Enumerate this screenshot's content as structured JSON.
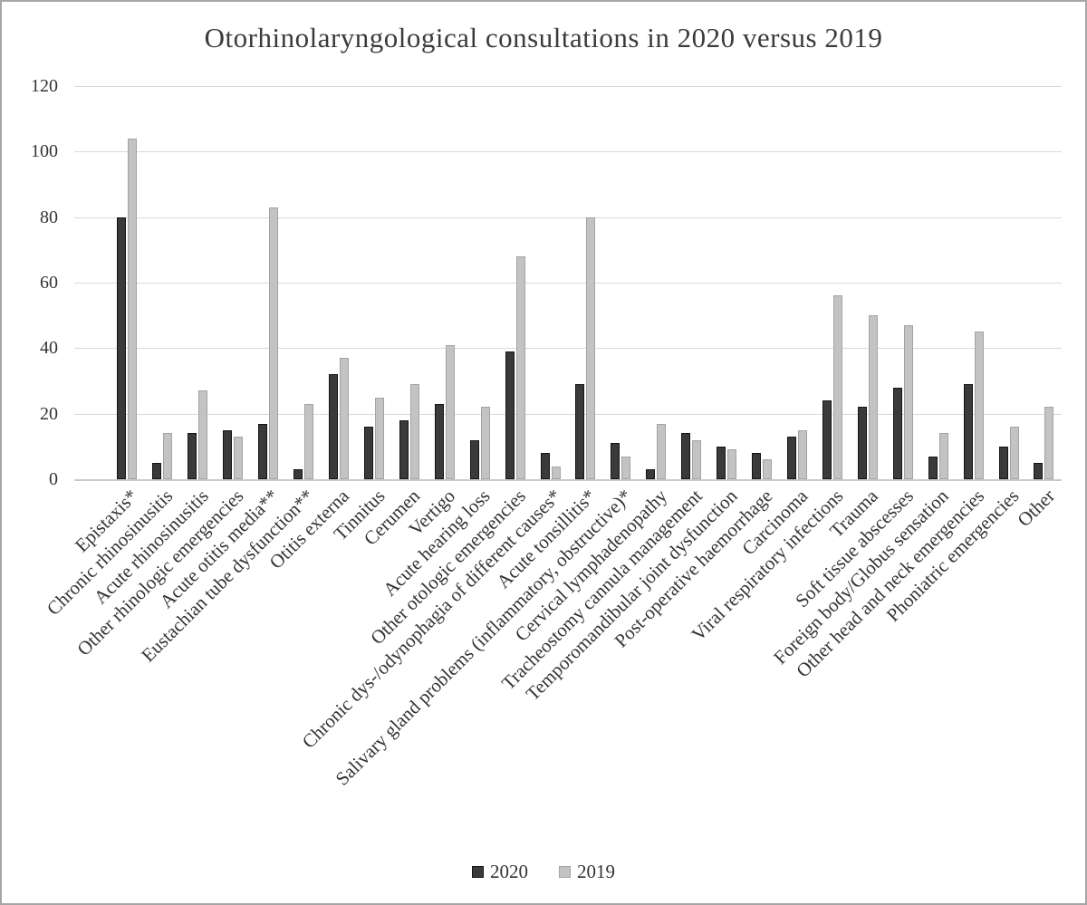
{
  "chart_data": {
    "type": "bar",
    "title": "Otorhinolaryngological consultations in 2020 versus 2019",
    "categories": [
      "Epistaxis*",
      "Chronic rhinosinusitis",
      "Acute rhinosinusitis",
      "Other rhinologic emergencies",
      "Acute otitis media**",
      "Eustachian tube dysfunction**",
      "Otitis externa",
      "Tinnitus",
      "Cerumen",
      "Vertigo",
      "Acute hearing loss",
      "Other otologic emergencies",
      "Chronic dys-/odynophagia of different causes*",
      "Acute tonsillitis*",
      "Salivary gland problems (inflammatory, obstructive)*",
      "Cervical lymphadenopathy",
      "Tracheostomy cannula management",
      "Temporomandibular joint dysfunction",
      "Post-operative haemorrhage",
      "Carcinoma",
      "Viral respiratory infections",
      "Trauma",
      "Soft tissue abscesses",
      "Foreign body/Globus sensation",
      "Other head and neck emergencies",
      "Phoniatric emergencies",
      "Other"
    ],
    "series": [
      {
        "name": "2020",
        "fill": "#3a3a3a",
        "border": "#141414",
        "values": [
          80,
          5,
          14,
          15,
          17,
          3,
          32,
          16,
          18,
          23,
          12,
          39,
          8,
          29,
          11,
          3,
          14,
          10,
          8,
          13,
          24,
          22,
          28,
          7,
          29,
          10,
          5
        ]
      },
      {
        "name": "2019",
        "fill": "#c3c3c3",
        "border": "#a3a3a3",
        "values": [
          104,
          14,
          27,
          13,
          83,
          23,
          37,
          25,
          29,
          41,
          22,
          68,
          4,
          80,
          7,
          17,
          12,
          9,
          6,
          15,
          56,
          50,
          47,
          14,
          45,
          16,
          22
        ]
      }
    ],
    "ylim": [
      0,
      120
    ],
    "ytick_step": 20,
    "yticks": [
      0,
      20,
      40,
      60,
      80,
      100,
      120
    ],
    "xlabel": "",
    "ylabel": "",
    "grid": true,
    "legend_position": "bottom"
  },
  "colors": {
    "gridline": "#d9d9d9",
    "axis_line": "#c9c9c9",
    "text": "#333333",
    "canvas_border": "#a6a6a6",
    "background": "#ffffff"
  }
}
